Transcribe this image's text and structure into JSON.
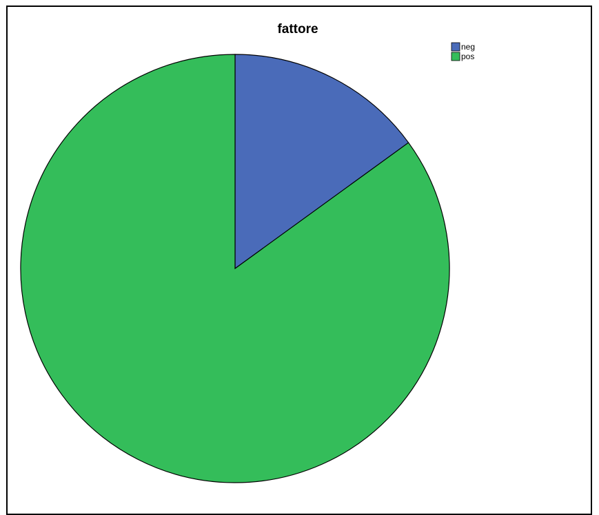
{
  "chart_data": {
    "type": "pie",
    "title": "fattore",
    "categories": [
      "neg",
      "pos"
    ],
    "values": [
      15,
      85
    ],
    "colors": [
      "#4A6BB9",
      "#34BD5A"
    ],
    "start_angle": "12 o'clock",
    "direction": "clockwise",
    "legend": {
      "position": "top-right",
      "entries": [
        "neg",
        "pos"
      ]
    }
  }
}
